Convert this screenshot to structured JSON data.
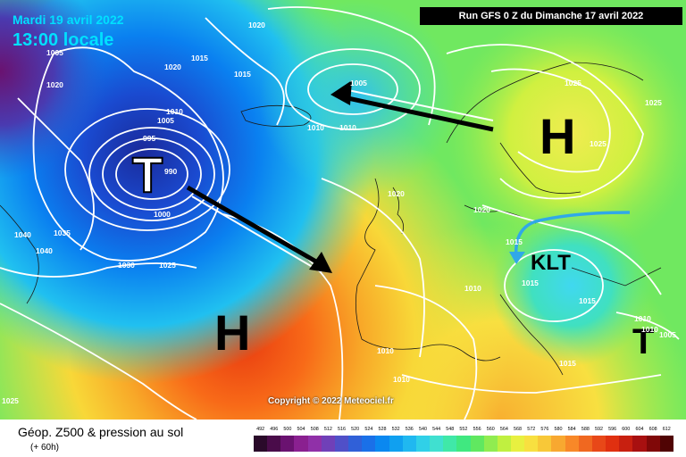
{
  "header": {
    "date": "Mardi 19 avril 2022",
    "time": "13:00 locale",
    "run": "Run GFS 0 Z du Dimanche 17 avril 2022"
  },
  "copyright": "Copyright © 2022 Meteociel.fr",
  "footer": {
    "title": "Géop. Z500 & pression au sol",
    "subtitle": "(+ 60h)"
  },
  "systems": {
    "low_atlantic": "T",
    "high_scandinavia": "H",
    "high_azores": "H",
    "low_eastern": "T",
    "klt": "KLT"
  },
  "pressure_labels": {
    "p1": "1020",
    "p2": "1005",
    "p3": "1020",
    "p4": "1020",
    "p5": "1015",
    "p6": "1015",
    "p7": "1010",
    "p8": "1005",
    "p9": "995",
    "p10": "990",
    "p11": "1000",
    "p12": "1005",
    "p13": "1010",
    "p14": "1010",
    "p15": "1025",
    "p16": "1025",
    "p17": "1025",
    "p18": "1020",
    "p19": "1020",
    "p20": "1015",
    "p21": "1010",
    "p22": "1015",
    "p23": "1015",
    "p24": "1010",
    "p25": "1010",
    "p26": "1040",
    "p27": "1035",
    "p28": "1040",
    "p29": "1030",
    "p30": "1025",
    "p31": "1010",
    "p32": "1010",
    "p33": "1005",
    "p34": "1025",
    "p35": "1015"
  },
  "legend": {
    "labels": [
      "492",
      "496",
      "500",
      "504",
      "508",
      "512",
      "516",
      "520",
      "524",
      "528",
      "532",
      "536",
      "540",
      "544",
      "548",
      "552",
      "556",
      "560",
      "564",
      "568",
      "572",
      "576",
      "580",
      "584",
      "588",
      "592",
      "596",
      "600",
      "604",
      "608",
      "612"
    ],
    "colors": [
      "#2a0a2a",
      "#4a0c4a",
      "#6a1270",
      "#8a2090",
      "#9030a8",
      "#7040b8",
      "#5050c8",
      "#3060d8",
      "#1a70e8",
      "#0a88f0",
      "#10a0f0",
      "#20b8f0",
      "#30d0e8",
      "#40e0d0",
      "#40e8a8",
      "#40e880",
      "#60e860",
      "#90ec50",
      "#c0f040",
      "#e8f040",
      "#f8e040",
      "#f8c838",
      "#f8a830",
      "#f88828",
      "#f06820",
      "#e84818",
      "#e03010",
      "#c82010",
      "#a81010",
      "#800808",
      "#500404"
    ]
  }
}
